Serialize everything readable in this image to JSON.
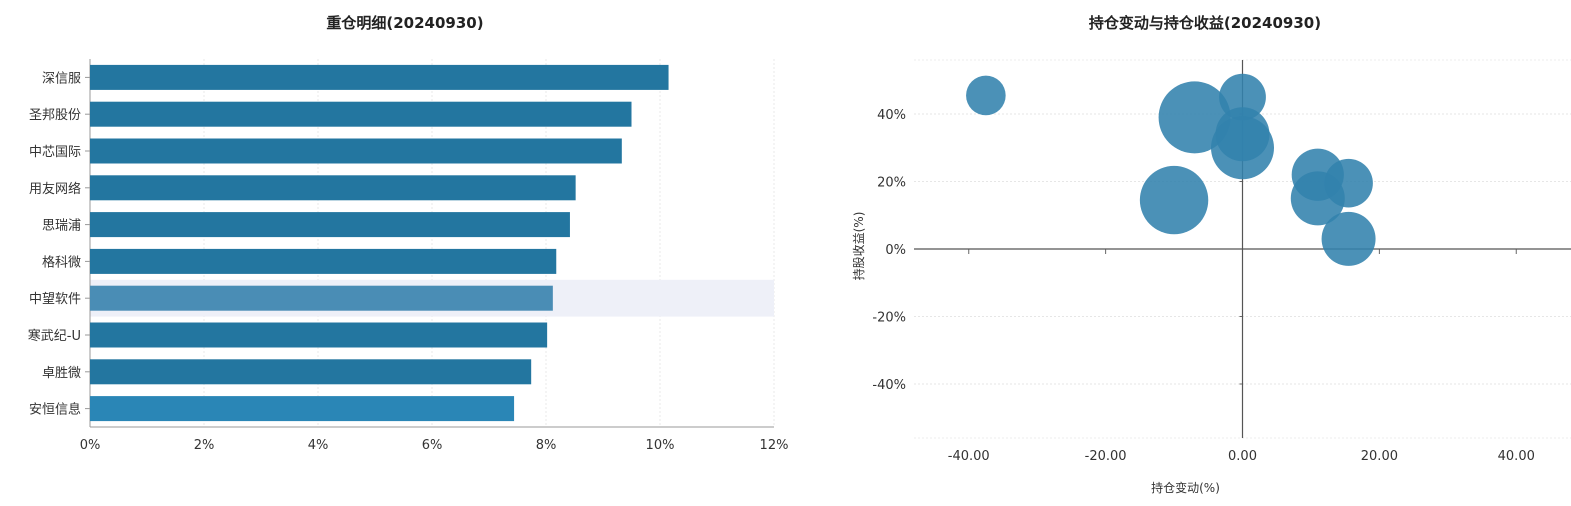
{
  "chart_data": [
    {
      "type": "bar",
      "orientation": "horizontal",
      "title": "重仓明细(20240930)",
      "categories": [
        "深信服",
        "圣邦股份",
        "中芯国际",
        "用友网络",
        "思瑞浦",
        "格科微",
        "中望软件",
        "寒武纪-U",
        "卓胜微",
        "安恒信息"
      ],
      "values": [
        10.15,
        9.5,
        9.33,
        8.52,
        8.42,
        8.18,
        8.12,
        8.02,
        7.74,
        7.44
      ],
      "x_tick_labels": [
        "0%",
        "2%",
        "4%",
        "6%",
        "8%",
        "10%",
        "12%"
      ],
      "xlim": [
        0,
        12
      ],
      "highlighted_category": "中望软件",
      "colors": {
        "bar": "#2376a0",
        "highlight": "#4a8db5",
        "last": "#2a86b6",
        "hover_band": "#eef0f8"
      }
    },
    {
      "type": "scatter",
      "subtype": "bubble",
      "title": "持仓变动与持仓收益(20240930)",
      "xlabel": "持仓变动(%)",
      "ylabel": "持股收益(%)",
      "xlim": [
        -48,
        48
      ],
      "ylim": [
        -56,
        56
      ],
      "x_tick_labels": [
        "-40.00",
        "-20.00",
        "0.00",
        "20.00",
        "40.00"
      ],
      "y_tick_labels": [
        "40%",
        "20%",
        "0%",
        "-20%",
        "-40%"
      ],
      "points": [
        {
          "x": -37.5,
          "y": 45.5,
          "size": 2.2
        },
        {
          "x": -7.0,
          "y": 39.0,
          "size": 4.0
        },
        {
          "x": 0.0,
          "y": 45.0,
          "size": 2.6
        },
        {
          "x": 0.0,
          "y": 34.0,
          "size": 3.0
        },
        {
          "x": 0.0,
          "y": 30.0,
          "size": 3.5
        },
        {
          "x": -10.0,
          "y": 14.5,
          "size": 3.8
        },
        {
          "x": 11.0,
          "y": 22.0,
          "size": 2.9
        },
        {
          "x": 15.5,
          "y": 19.5,
          "size": 2.7
        },
        {
          "x": 11.0,
          "y": 15.0,
          "size": 3.0
        },
        {
          "x": 15.5,
          "y": 3.0,
          "size": 3.0
        }
      ],
      "colors": {
        "bubble": "#3282ad"
      }
    }
  ]
}
